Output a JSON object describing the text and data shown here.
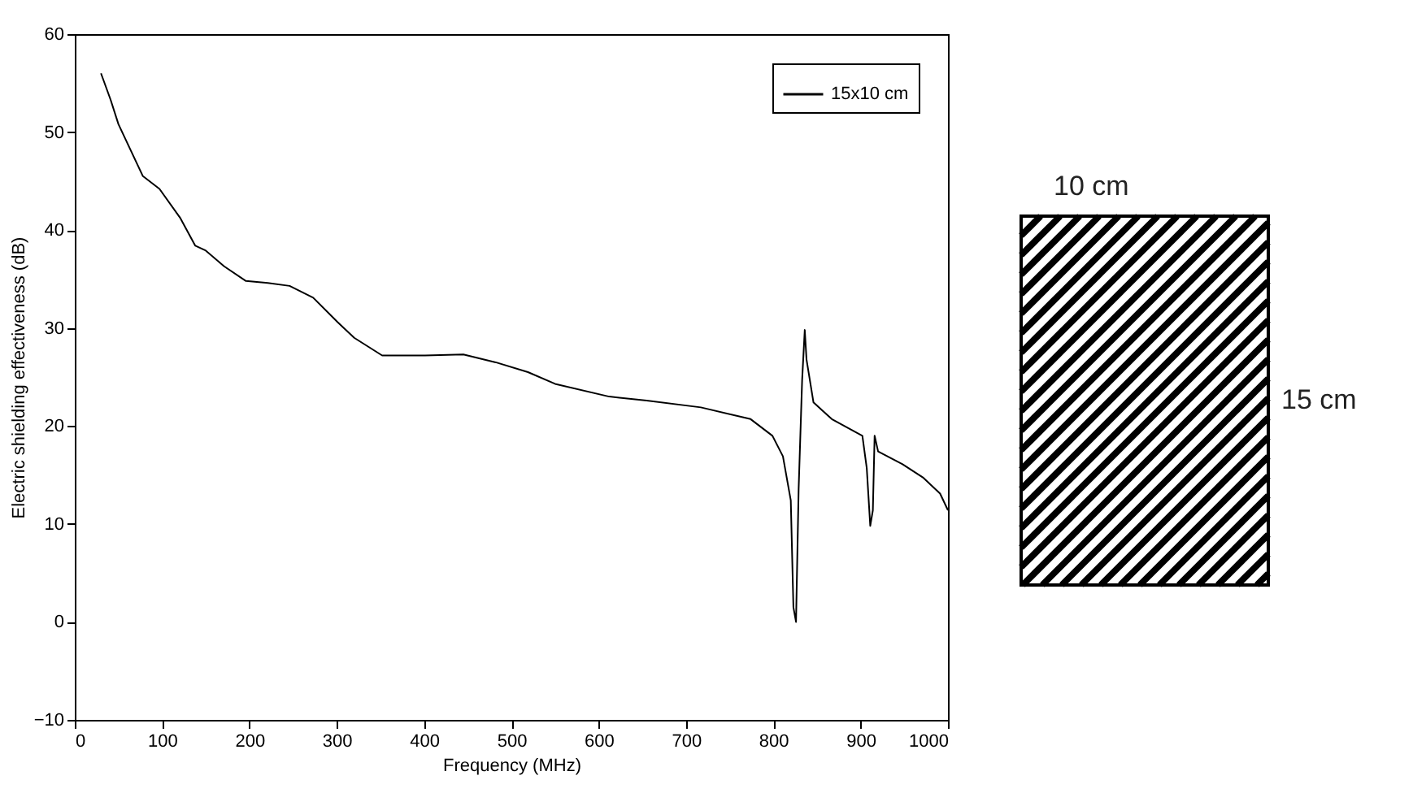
{
  "chart_data": {
    "type": "line",
    "xlabel": "Frequency (MHz)",
    "ylabel": "Electric shielding effectiveness (dB)",
    "xlim": [
      0,
      1000
    ],
    "xticks": [
      0,
      100,
      200,
      300,
      400,
      500,
      600,
      700,
      800,
      900,
      {
        "value": 1000,
        "label": "1000"
      }
    ],
    "ylim": [
      -10,
      60
    ],
    "yticks": [
      -10,
      0,
      10,
      20,
      30,
      40,
      50,
      60
    ],
    "grid": false,
    "legend": "top right",
    "marker": "none",
    "line_style": "solid",
    "series": [
      {
        "name": "15x10 cm",
        "color": "#000000",
        "x": [
          30,
          41,
          50,
          78,
          97,
          121,
          138,
          150,
          171,
          196,
          221,
          246,
          273,
          301,
          320,
          352,
          401,
          445,
          482,
          519,
          550,
          612,
          655,
          717,
          774,
          799,
          811,
          820,
          823,
          826,
          829,
          833,
          836,
          838,
          846,
          867,
          902,
          907,
          911,
          914,
          916,
          920,
          948,
          972,
          991,
          1000
        ],
        "values": [
          56.0,
          53.3,
          50.8,
          45.5,
          44.2,
          41.2,
          38.4,
          37.9,
          36.3,
          34.8,
          34.6,
          34.3,
          33.1,
          30.6,
          29.0,
          27.2,
          27.2,
          27.3,
          26.5,
          25.5,
          24.3,
          23.0,
          22.6,
          21.9,
          20.7,
          19.0,
          16.9,
          12.4,
          1.5,
          0,
          13.6,
          24.7,
          29.8,
          26.8,
          22.4,
          20.7,
          19.0,
          15.7,
          9.8,
          11.4,
          19.0,
          17.4,
          16.1,
          14.7,
          13.1,
          11.4
        ]
      }
    ],
    "annotations": [
      "10 cm",
      "15 cm"
    ]
  }
}
